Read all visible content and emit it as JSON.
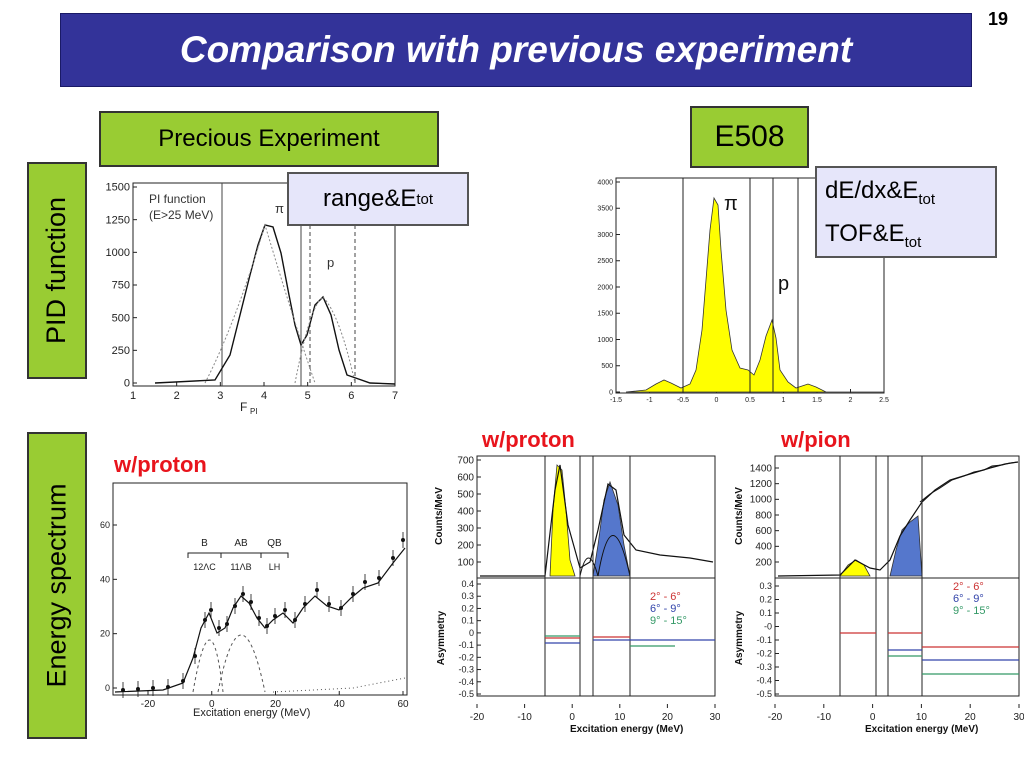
{
  "slide": {
    "title": "Comparison with previous experiment",
    "number": "19"
  },
  "labels": {
    "previous_experiment": "Precious Experiment",
    "e508": "E508",
    "pid_function": "PID function",
    "energy_spectrum": "Energy spectrum",
    "range_etot_main": "range&E",
    "range_etot_sub": "tot",
    "dedx_main": "dE/dx&E",
    "dedx_sub": "tot",
    "tof_main": "TOF&E",
    "tof_sub": "tot",
    "w_proton_left": "w/proton",
    "w_proton_mid": "w/proton",
    "w_pion_right": "w/pion"
  },
  "colors": {
    "title_bg": "#333399",
    "label_green": "#99cc33",
    "note_lavender": "#e6e6fa",
    "yellow_fill": "#ffff00",
    "blue_fill": "#5577cc",
    "red_text": "#e8141c"
  },
  "plots": {
    "prev_pid": {
      "legend_line1": "PI function",
      "legend_line2": "(E>25 MeV)",
      "pi_label": "π",
      "p_label": "p",
      "xlabel": "F",
      "xlabel_sub": "PI",
      "yticks": [
        "0",
        "250",
        "500",
        "750",
        "1000",
        "1250",
        "1500"
      ],
      "xticks": [
        "1",
        "2",
        "3",
        "4",
        "5",
        "6",
        "7"
      ]
    },
    "e508_pid": {
      "pi_label": "π",
      "p_label": "p",
      "yticks": [
        "0",
        "500",
        "1000",
        "1500",
        "2000",
        "2500",
        "3000",
        "3500",
        "4000"
      ],
      "xticks": [
        "-1.5",
        "-1",
        "-0.5",
        "0",
        "0.5",
        "1",
        "1.5",
        "2",
        "2.5"
      ]
    },
    "prev_energy": {
      "xlabel": "Excitation energy (MeV)",
      "xticks": [
        "-20",
        "0",
        "20",
        "40",
        "60"
      ],
      "yticks": [
        "0",
        "20",
        "40",
        "60"
      ],
      "region_labels": [
        "B",
        "AB",
        "QB"
      ],
      "sub_labels": [
        "12ΛC",
        "11ΛB",
        "LH"
      ]
    },
    "proton_energy": {
      "ylabel_top": "Counts/MeV",
      "ylabel_bottom": "Asymmetry",
      "xlabel": "Excitation energy (MeV)",
      "yticks_top": [
        "100",
        "200",
        "300",
        "400",
        "500",
        "600",
        "700"
      ],
      "yticks_bottom": [
        "0.4",
        "0.3",
        "0.2",
        "0.1",
        "0",
        "-0.1",
        "-0.2",
        "-0.3",
        "-0.4",
        "-0.5"
      ],
      "xticks": [
        "-20",
        "-10",
        "0",
        "10",
        "20",
        "30"
      ],
      "angle_legend": [
        "2° - 6°",
        "6° - 9°",
        "9° - 15°"
      ]
    },
    "pion_energy": {
      "ylabel_top": "Counts/MeV",
      "ylabel_bottom": "Asymmetry",
      "xlabel": "Excitation energy (MeV)",
      "yticks_top": [
        "200",
        "400",
        "600",
        "800",
        "1000",
        "1200",
        "1400"
      ],
      "yticks_bottom": [
        "0.3",
        "0.2",
        "0.1",
        "-0",
        "-0.1",
        "-0.2",
        "-0.3",
        "-0.4",
        "-0.5"
      ],
      "xticks": [
        "-20",
        "-10",
        "0",
        "10",
        "20",
        "30"
      ],
      "angle_legend": [
        "2° - 6°",
        "6° - 9°",
        "9° - 15°"
      ]
    }
  }
}
